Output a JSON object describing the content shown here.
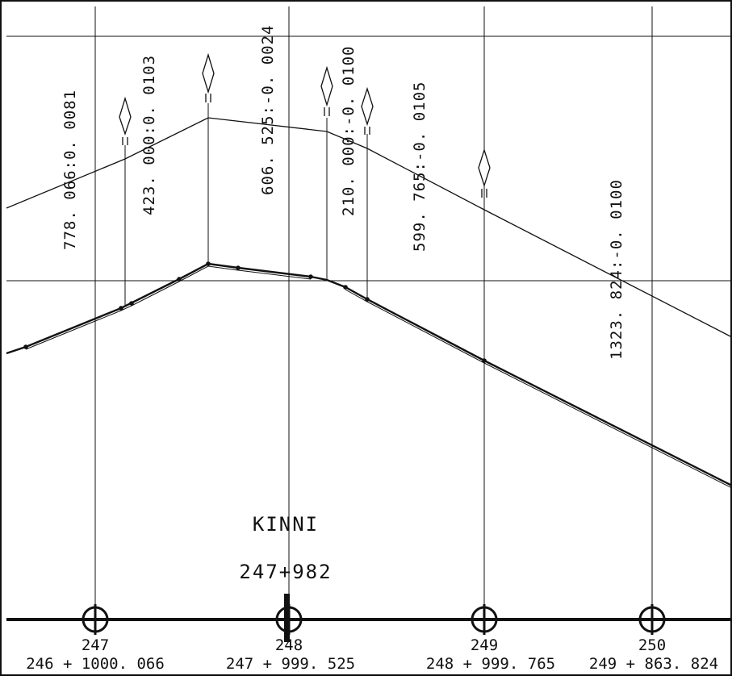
{
  "colors": {
    "ink": "#111111",
    "background": "#ffffff"
  },
  "grade_labels": [
    {
      "text": "778. 066:0. 0081"
    },
    {
      "text": "423. 000:0. 0103"
    },
    {
      "text": "606. 525:-0. 0024"
    },
    {
      "text": "210. 000:-0. 0100"
    },
    {
      "text": "599. 765:-0. 0105"
    },
    {
      "text": "1323. 824:-0. 0100"
    }
  ],
  "stations": [
    {
      "number": "247",
      "chainage": "246 + 1000. 066"
    },
    {
      "number": "248",
      "chainage": "247 + 999. 525"
    },
    {
      "number": "249",
      "chainage": "248 + 999. 765"
    },
    {
      "number": "250",
      "chainage": "249 + 863. 824"
    }
  ],
  "marker": {
    "name": "KINNI",
    "chainage": "247+982"
  },
  "icons": [
    "grade-change-diamond-icon",
    "station-crosshair-icon"
  ]
}
